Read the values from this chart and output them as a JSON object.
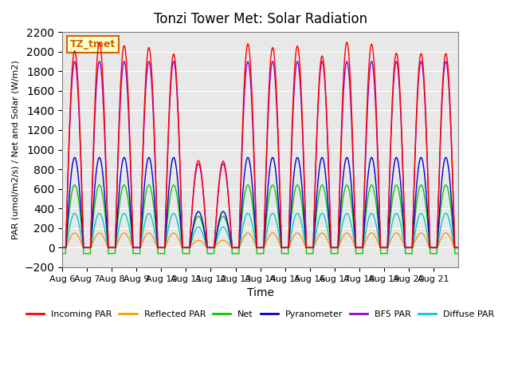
{
  "title": "Tonzi Tower Met: Solar Radiation",
  "ylabel": "PAR (umol/m2/s) / Net and Solar (W/m2)",
  "xlabel": "Time",
  "ylim": [
    -200,
    2200
  ],
  "bg_color": "#e8e8e8",
  "label_box_text": "TZ_tmet",
  "label_box_facecolor": "#ffffcc",
  "label_box_edgecolor": "#cc6600",
  "xtick_labels": [
    "Aug 6",
    "Aug 7",
    "Aug 8",
    "Aug 9",
    "Aug 10",
    "Aug 11",
    "Aug 12",
    "Aug 13",
    "Aug 14",
    "Aug 15",
    "Aug 16",
    "Aug 17",
    "Aug 18",
    "Aug 19",
    "Aug 20",
    "Aug 21"
  ],
  "xtick_positions": [
    0,
    1,
    2,
    3,
    4,
    5,
    6,
    7,
    8,
    9,
    10,
    11,
    12,
    13,
    14,
    15
  ],
  "series": {
    "incoming_par": {
      "label": "Incoming PAR",
      "color": "#ff0000"
    },
    "reflected_par": {
      "label": "Reflected PAR",
      "color": "#ff9900"
    },
    "net": {
      "label": "Net",
      "color": "#00cc00"
    },
    "pyranometer": {
      "label": "Pyranometer",
      "color": "#0000cc"
    },
    "bf5_par": {
      "label": "BF5 PAR",
      "color": "#9900cc"
    },
    "diffuse_par": {
      "label": "Diffuse PAR",
      "color": "#00cccc"
    }
  },
  "n_days": 16,
  "cloud_days": [
    5,
    6
  ],
  "incoming_peak": 2100,
  "reflected_peak": 150,
  "net_peak": 640,
  "net_night": -60,
  "pyranometer_peak": 920,
  "bf5_peak": 1900,
  "diffuse_peak": 350,
  "yticks": [
    -200,
    0,
    200,
    400,
    600,
    800,
    1000,
    1200,
    1400,
    1600,
    1800,
    2000,
    2200
  ]
}
